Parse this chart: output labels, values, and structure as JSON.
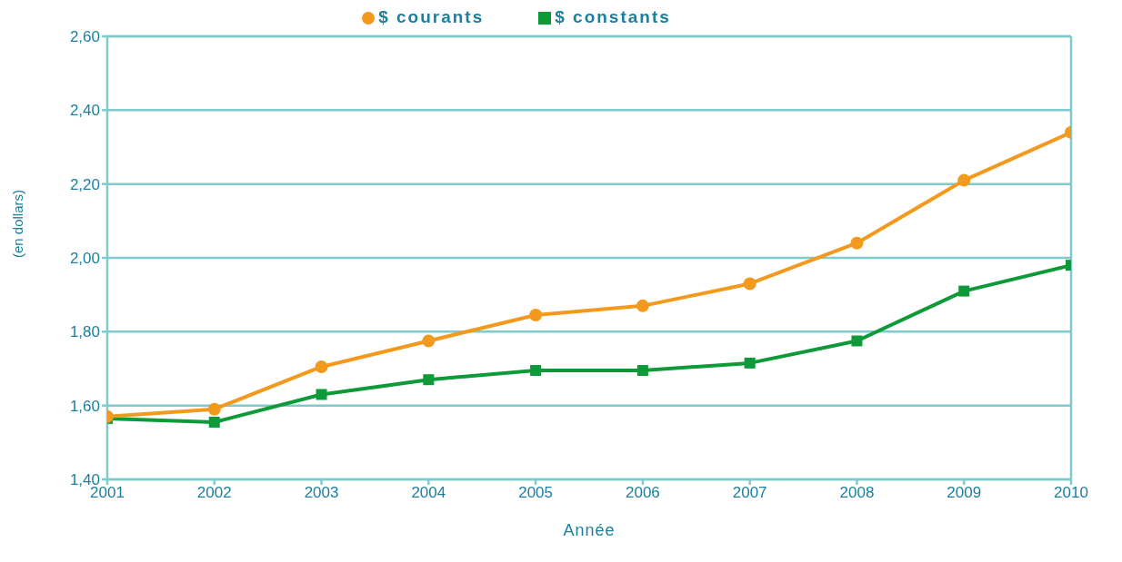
{
  "chart_data": {
    "type": "line",
    "xlabel": "Année",
    "ylabel": "(en dollars)",
    "x": [
      2001,
      2002,
      2003,
      2004,
      2005,
      2006,
      2007,
      2008,
      2009,
      2010
    ],
    "series": [
      {
        "name": "$ courants",
        "color": "#f39a1e",
        "marker": "circle",
        "values": [
          1.57,
          1.59,
          1.705,
          1.775,
          1.845,
          1.87,
          1.93,
          2.04,
          2.21,
          2.34
        ]
      },
      {
        "name": "$ constants",
        "color": "#0f9a3a",
        "marker": "square",
        "values": [
          1.565,
          1.555,
          1.63,
          1.67,
          1.695,
          1.695,
          1.715,
          1.775,
          1.91,
          1.98
        ]
      }
    ],
    "xlim": [
      2001,
      2010
    ],
    "xticks": [
      2001,
      2002,
      2003,
      2004,
      2005,
      2006,
      2007,
      2008,
      2009,
      2010
    ],
    "ylim": [
      1.4,
      2.6
    ],
    "yticks": [
      {
        "value": 1.4,
        "label": "1,40"
      },
      {
        "value": 1.6,
        "label": "1,60"
      },
      {
        "value": 1.8,
        "label": "1,80"
      },
      {
        "value": 2.0,
        "label": "2,00"
      },
      {
        "value": 2.2,
        "label": "2,20"
      },
      {
        "value": 2.4,
        "label": "2,40"
      },
      {
        "value": 2.6,
        "label": "2,60"
      }
    ],
    "grid": "y",
    "legend": "top",
    "line_style": "solid"
  }
}
